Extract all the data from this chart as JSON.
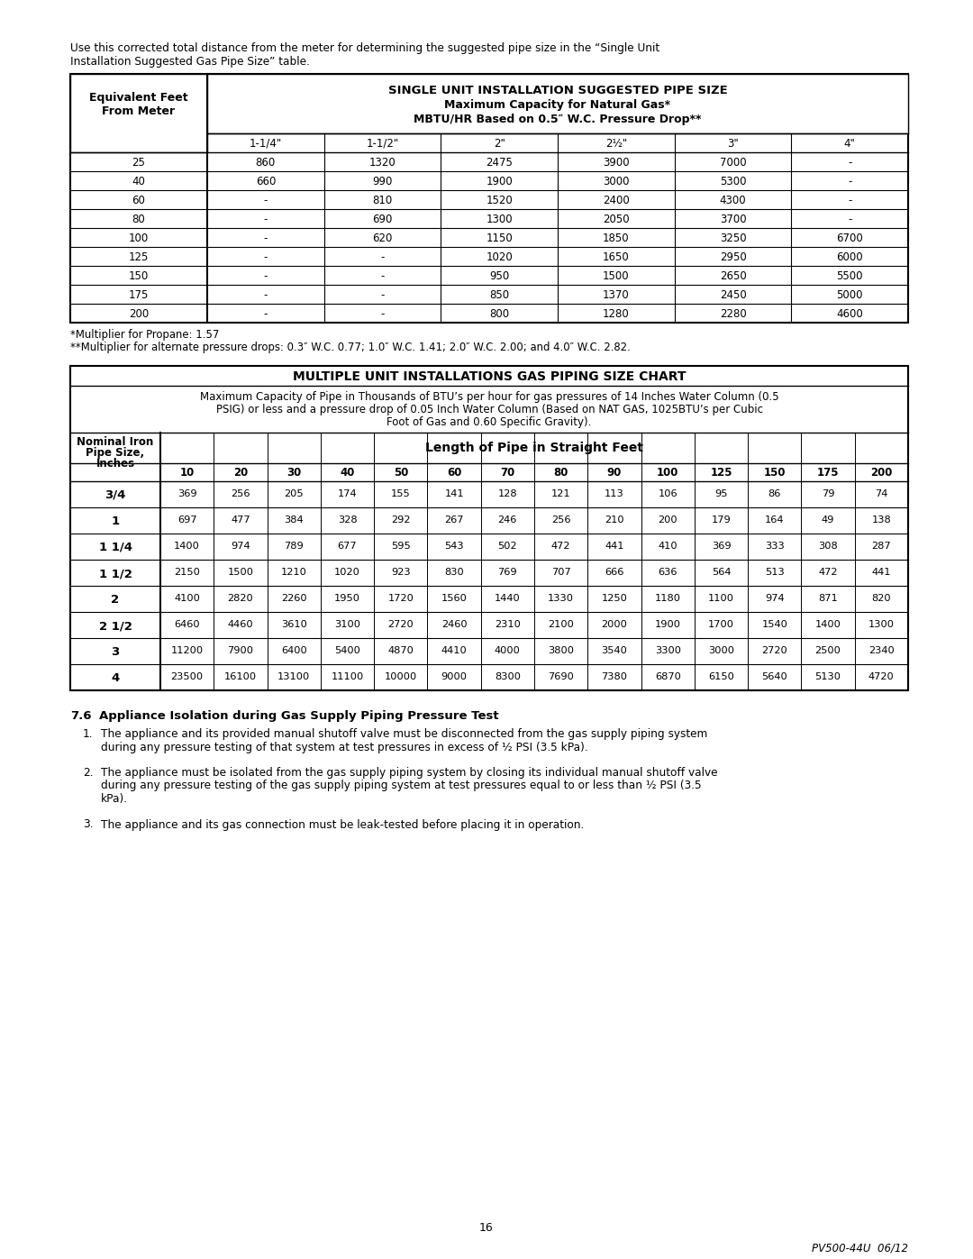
{
  "intro_text_line1": "Use this corrected total distance from the meter for determining the suggested pipe size in the “Single Unit",
  "intro_text_line2": "Installation Suggested Gas Pipe Size” table.",
  "table1_title_line1": "SINGLE UNIT INSTALLATION SUGGESTED PIPE SIZE",
  "table1_title_line2": "Maximum Capacity for Natural Gas*",
  "table1_title_line3": "MBTU/HR Based on 0.5″ W.C. Pressure Drop**",
  "table1_col_header_left_line1": "Equivalent Feet",
  "table1_col_header_left_line2": "From Meter",
  "table1_pipe_sizes": [
    "1-1/4\"",
    "1-1/2\"",
    "2\"",
    "2½\"",
    "3\"",
    "4\""
  ],
  "table1_rows": [
    [
      "25",
      "860",
      "1320",
      "2475",
      "3900",
      "7000",
      "-"
    ],
    [
      "40",
      "660",
      "990",
      "1900",
      "3000",
      "5300",
      "-"
    ],
    [
      "60",
      "-",
      "810",
      "1520",
      "2400",
      "4300",
      "-"
    ],
    [
      "80",
      "-",
      "690",
      "1300",
      "2050",
      "3700",
      "-"
    ],
    [
      "100",
      "-",
      "620",
      "1150",
      "1850",
      "3250",
      "6700"
    ],
    [
      "125",
      "-",
      "-",
      "1020",
      "1650",
      "2950",
      "6000"
    ],
    [
      "150",
      "-",
      "-",
      "950",
      "1500",
      "2650",
      "5500"
    ],
    [
      "175",
      "-",
      "-",
      "850",
      "1370",
      "2450",
      "5000"
    ],
    [
      "200",
      "-",
      "-",
      "800",
      "1280",
      "2280",
      "4600"
    ]
  ],
  "table1_footnote1": "*Multiplier for Propane: 1.57",
  "table1_footnote2": "**Multiplier for alternate pressure drops: 0.3″ W.C. 0.77; 1.0″ W.C. 1.41; 2.0″ W.C. 2.00; and 4.0″ W.C. 2.82.",
  "table2_title": "MULTIPLE UNIT INSTALLATIONS GAS PIPING SIZE CHART",
  "table2_subtitle_line1": "Maximum Capacity of Pipe in Thousands of BTU’s per hour for gas pressures of 14 Inches Water Column (0.5",
  "table2_subtitle_line2": "PSIG) or less and a pressure drop of 0.05 Inch Water Column (Based on NAT GAS, 1025BTU’s per Cubic",
  "table2_subtitle_line3": "Foot of Gas and 0.60 Specific Gravity).",
  "table2_col_header_left": "Nominal Iron\nPipe Size,\nInches",
  "table2_col_header_right": "Length of Pipe in Straight Feet",
  "table2_lengths": [
    "10",
    "20",
    "30",
    "40",
    "50",
    "60",
    "70",
    "80",
    "90",
    "100",
    "125",
    "150",
    "175",
    "200"
  ],
  "table2_rows": [
    [
      "3/4",
      "369",
      "256",
      "205",
      "174",
      "155",
      "141",
      "128",
      "121",
      "113",
      "106",
      "95",
      "86",
      "79",
      "74"
    ],
    [
      "1",
      "697",
      "477",
      "384",
      "328",
      "292",
      "267",
      "246",
      "256",
      "210",
      "200",
      "179",
      "164",
      "49",
      "138"
    ],
    [
      "1 1/4",
      "1400",
      "974",
      "789",
      "677",
      "595",
      "543",
      "502",
      "472",
      "441",
      "410",
      "369",
      "333",
      "308",
      "287"
    ],
    [
      "1 1/2",
      "2150",
      "1500",
      "1210",
      "1020",
      "923",
      "830",
      "769",
      "707",
      "666",
      "636",
      "564",
      "513",
      "472",
      "441"
    ],
    [
      "2",
      "4100",
      "2820",
      "2260",
      "1950",
      "1720",
      "1560",
      "1440",
      "1330",
      "1250",
      "1180",
      "1100",
      "974",
      "871",
      "820"
    ],
    [
      "2 1/2",
      "6460",
      "4460",
      "3610",
      "3100",
      "2720",
      "2460",
      "2310",
      "2100",
      "2000",
      "1900",
      "1700",
      "1540",
      "1400",
      "1300"
    ],
    [
      "3",
      "11200",
      "7900",
      "6400",
      "5400",
      "4870",
      "4410",
      "4000",
      "3800",
      "3540",
      "3300",
      "3000",
      "2720",
      "2500",
      "2340"
    ],
    [
      "4",
      "23500",
      "16100",
      "13100",
      "11100",
      "10000",
      "9000",
      "8300",
      "7690",
      "7380",
      "6870",
      "6150",
      "5640",
      "5130",
      "4720"
    ]
  ],
  "section_title_num": "7.6",
  "section_title_text": "Appliance Isolation during Gas Supply Piping Pressure Test",
  "section_items": [
    "The appliance and its provided manual shutoff valve must be disconnected from the gas supply piping system\nduring any pressure testing of that system at test pressures in excess of ½ PSI (3.5 kPa).",
    "The appliance must be isolated from the gas supply piping system by closing its individual manual shutoff valve\nduring any pressure testing of the gas supply piping system at test pressures equal to or less than ½ PSI (3.5\nkPa).",
    "The appliance and its gas connection must be leak-tested before placing it in operation."
  ],
  "page_number": "16",
  "footer_text": "PV500-44U  06/12"
}
